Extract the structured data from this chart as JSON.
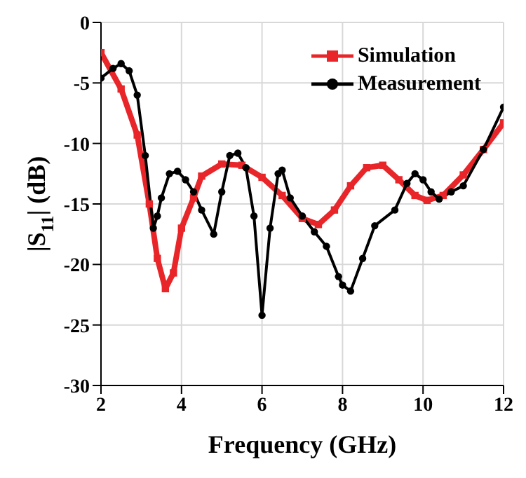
{
  "chart_data": {
    "type": "line",
    "xlabel": "Frequency (GHz)",
    "ylabel": "|S$_{11}$| (dB)",
    "xlim": [
      2,
      12
    ],
    "xticks": [
      2,
      4,
      6,
      8,
      10,
      12
    ],
    "ylim": [
      -30,
      0
    ],
    "yticks": [
      -30,
      -25,
      -20,
      -15,
      -10,
      -5,
      0
    ],
    "grid": true,
    "legend": "top right",
    "line_style": "solid",
    "series": [
      {
        "name": "Simulation",
        "color": "#e8262a",
        "marker": "square",
        "x": [
          2,
          2.5,
          2.9,
          3.2,
          3.4,
          3.6,
          3.8,
          4.0,
          4.3,
          4.5,
          5.0,
          5.5,
          6.0,
          6.5,
          7.0,
          7.4,
          7.8,
          8.2,
          8.6,
          9.0,
          9.4,
          9.8,
          10.1,
          10.5,
          11,
          11.5,
          12
        ],
        "values": [
          -2.5,
          -5.5,
          -9.3,
          -15,
          -19.5,
          -22,
          -20.7,
          -17,
          -14.5,
          -12.7,
          -11.7,
          -11.8,
          -12.8,
          -14.3,
          -16.2,
          -16.7,
          -15.5,
          -13.5,
          -12,
          -11.8,
          -13,
          -14.3,
          -14.7,
          -14.3,
          -12.6,
          -10.5,
          -8.3
        ]
      },
      {
        "name": "Measurement",
        "color": "#000000",
        "marker": "circle",
        "x": [
          2,
          2.3,
          2.5,
          2.7,
          2.9,
          3.1,
          3.3,
          3.4,
          3.5,
          3.7,
          3.9,
          4.1,
          4.3,
          4.5,
          4.8,
          5.0,
          5.2,
          5.4,
          5.6,
          5.8,
          6.0,
          6.2,
          6.4,
          6.5,
          6.7,
          7.0,
          7.3,
          7.6,
          7.9,
          8.0,
          8.2,
          8.5,
          8.8,
          9.3,
          9.6,
          9.8,
          10.0,
          10.2,
          10.4,
          10.7,
          11,
          11.5,
          12
        ],
        "values": [
          -4.6,
          -3.8,
          -3.4,
          -4,
          -6,
          -11,
          -17,
          -16,
          -14.5,
          -12.5,
          -12.3,
          -13,
          -14,
          -15.5,
          -17.5,
          -14,
          -11,
          -10.8,
          -12,
          -16,
          -24.2,
          -17,
          -12.5,
          -12.2,
          -14.5,
          -16,
          -17.3,
          -18.5,
          -21,
          -21.7,
          -22.2,
          -19.5,
          -16.8,
          -15.5,
          -13.3,
          -12.5,
          -13,
          -14,
          -14.6,
          -14,
          -13.5,
          -10.5,
          -7
        ]
      }
    ]
  }
}
